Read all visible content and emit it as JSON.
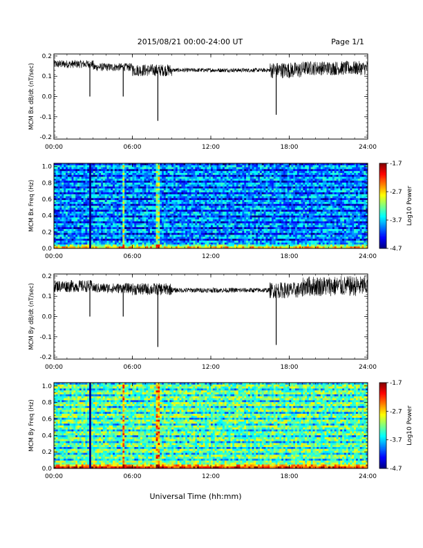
{
  "header": {
    "title": "2015/08/21  00:00-24:00 UT",
    "page_label": "Page 1/1"
  },
  "chart_data": [
    {
      "type": "line",
      "id": "bx-line",
      "ylabel": "MCM Bx dB/dt (nT/sec)",
      "ylim": [
        -0.21,
        0.21
      ],
      "yticks": [
        "0.2",
        "0.1",
        "0.0",
        "-0.1",
        "-0.2"
      ],
      "ytick_values": [
        0.2,
        0.1,
        0.0,
        -0.1,
        -0.2
      ],
      "xlim": [
        0,
        24
      ],
      "xticks": [
        "00:00",
        "06:00",
        "12:00",
        "18:00",
        "24:00"
      ],
      "xtick_values": [
        0,
        6,
        12,
        18,
        24
      ],
      "baseline_segments": [
        {
          "x": [
            0,
            3
          ],
          "center": 0.16,
          "noise": 0.02
        },
        {
          "x": [
            3,
            6
          ],
          "center": 0.145,
          "noise": 0.02
        },
        {
          "x": [
            6,
            9
          ],
          "center": 0.13,
          "noise": 0.03
        },
        {
          "x": [
            9,
            16.5
          ],
          "center": 0.13,
          "noise": 0.01
        },
        {
          "x": [
            16.5,
            19
          ],
          "center": 0.13,
          "noise": 0.04
        },
        {
          "x": [
            19,
            24
          ],
          "center": 0.14,
          "noise": 0.035
        }
      ],
      "spikes": [
        {
          "x": 2.75,
          "y": 0.0
        },
        {
          "x": 5.3,
          "y": 0.0
        },
        {
          "x": 7.95,
          "y": -0.12
        },
        {
          "x": 17.0,
          "y": -0.09
        }
      ]
    },
    {
      "type": "heatmap",
      "id": "bx-spec",
      "ylabel": "MCM Bx Freq (Hz)",
      "ylim": [
        0,
        1.04
      ],
      "yticks": [
        "1.0",
        "0.8",
        "0.6",
        "0.4",
        "0.2",
        "0.0"
      ],
      "ytick_values": [
        1.0,
        0.8,
        0.6,
        0.4,
        0.2,
        0.0
      ],
      "xlim": [
        0,
        24
      ],
      "xticks": [
        "00:00",
        "06:00",
        "12:00",
        "18:00",
        "24:00"
      ],
      "xtick_values": [
        0,
        6,
        12,
        18,
        24
      ],
      "colorbar": {
        "label": "Log10 Power",
        "ticks": [
          "-1.7",
          "-2.7",
          "-3.7",
          "-4.7"
        ],
        "tick_values": [
          -1.7,
          -2.7,
          -3.7,
          -4.7
        ],
        "range": [
          -4.7,
          -1.7
        ]
      },
      "base_level": -3.8,
      "dark_lines_x": [
        2.75
      ],
      "bright_lines_x": [
        5.3,
        7.95
      ]
    },
    {
      "type": "line",
      "id": "by-line",
      "ylabel": "MCM By dB/dt (nT/sec)",
      "ylim": [
        -0.21,
        0.21
      ],
      "yticks": [
        "0.2",
        "0.1",
        "0.0",
        "-0.1",
        "-0.2"
      ],
      "ytick_values": [
        0.2,
        0.1,
        0.0,
        -0.1,
        -0.2
      ],
      "xlim": [
        0,
        24
      ],
      "xticks": [
        "00:00",
        "06:00",
        "12:00",
        "18:00",
        "24:00"
      ],
      "xtick_values": [
        0,
        6,
        12,
        18,
        24
      ],
      "baseline_segments": [
        {
          "x": [
            0,
            3
          ],
          "center": 0.15,
          "noise": 0.03
        },
        {
          "x": [
            3,
            6
          ],
          "center": 0.14,
          "noise": 0.025
        },
        {
          "x": [
            6,
            9
          ],
          "center": 0.135,
          "noise": 0.03
        },
        {
          "x": [
            9,
            16.5
          ],
          "center": 0.13,
          "noise": 0.012
        },
        {
          "x": [
            16.5,
            19
          ],
          "center": 0.13,
          "noise": 0.04
        },
        {
          "x": [
            19,
            24
          ],
          "center": 0.15,
          "noise": 0.05
        }
      ],
      "spikes": [
        {
          "x": 2.75,
          "y": 0.0
        },
        {
          "x": 5.3,
          "y": 0.0
        },
        {
          "x": 7.95,
          "y": -0.15
        },
        {
          "x": 17.0,
          "y": -0.14
        }
      ]
    },
    {
      "type": "heatmap",
      "id": "by-spec",
      "ylabel": "MCM By Freq (Hz)",
      "ylim": [
        0,
        1.04
      ],
      "yticks": [
        "1.0",
        "0.8",
        "0.6",
        "0.4",
        "0.2",
        "0.0"
      ],
      "ytick_values": [
        1.0,
        0.8,
        0.6,
        0.4,
        0.2,
        0.0
      ],
      "xlim": [
        0,
        24
      ],
      "xticks": [
        "00:00",
        "06:00",
        "12:00",
        "18:00",
        "24:00"
      ],
      "xtick_values": [
        0,
        6,
        12,
        18,
        24
      ],
      "colorbar": {
        "label": "Log10 Power",
        "ticks": [
          "-1.7",
          "-2.7",
          "-3.7",
          "-4.7"
        ],
        "tick_values": [
          -1.7,
          -2.7,
          -3.7,
          -4.7
        ],
        "range": [
          -4.7,
          -1.7
        ]
      },
      "base_level": -3.2,
      "dark_lines_x": [
        2.75
      ],
      "bright_lines_x": [
        5.3,
        7.95
      ]
    }
  ],
  "footer": {
    "xlabel": "Universal Time (hh:mm)"
  }
}
